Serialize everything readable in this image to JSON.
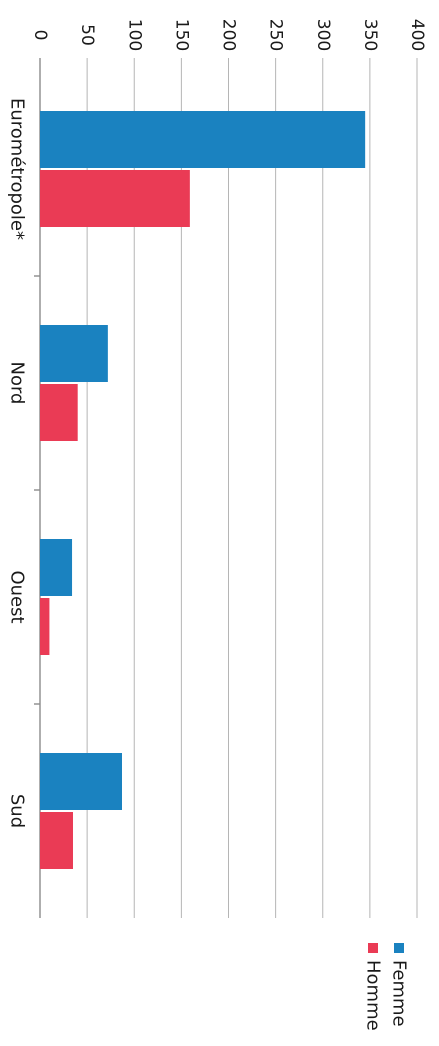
{
  "chart_data": {
    "type": "bar",
    "orientation": "horizontal",
    "categories": [
      "Eurométropole*",
      "Nord",
      "Ouest",
      "Sud"
    ],
    "series": [
      {
        "name": "Femme",
        "values": [
          345,
          72,
          34,
          87
        ],
        "color": "#1a82c0"
      },
      {
        "name": "Homme",
        "values": [
          159,
          40,
          10,
          35
        ],
        "color": "#ea3b55"
      }
    ],
    "value_axis": {
      "min": 0,
      "max": 400,
      "ticks": [
        0,
        50,
        100,
        150,
        200,
        250,
        300,
        350,
        400
      ]
    },
    "grid": true,
    "legend_position": "bottom",
    "title": "",
    "xlabel": "",
    "ylabel": ""
  }
}
